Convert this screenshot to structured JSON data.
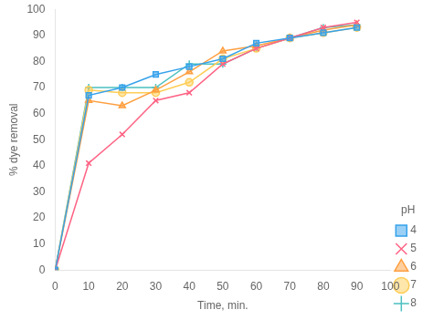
{
  "chart_data": {
    "type": "line",
    "xlabel": "Time, min.",
    "ylabel": "% dye removal",
    "x": [
      0,
      10,
      20,
      30,
      40,
      50,
      60,
      70,
      80,
      90
    ],
    "xlim": [
      0,
      100
    ],
    "ylim": [
      0,
      100
    ],
    "xticks": [
      0,
      10,
      20,
      30,
      40,
      50,
      60,
      70,
      80,
      90,
      100
    ],
    "yticks": [
      0,
      10,
      20,
      30,
      40,
      50,
      60,
      70,
      80,
      90,
      100
    ],
    "grid": false,
    "legend": "lower right",
    "legend_title": "pH",
    "series": [
      {
        "name": "4",
        "marker": "square",
        "values": [
          0,
          67,
          70,
          75,
          78,
          81,
          87,
          89,
          91,
          93
        ]
      },
      {
        "name": "5",
        "marker": "x",
        "values": [
          0,
          41,
          52,
          65,
          68,
          79,
          85,
          89,
          93,
          95
        ]
      },
      {
        "name": "6",
        "marker": "triangle",
        "values": [
          0,
          65,
          63,
          69,
          76,
          84,
          86,
          89,
          92,
          94
        ]
      },
      {
        "name": "7",
        "marker": "circle",
        "values": [
          0,
          69,
          68,
          68,
          72,
          81,
          85,
          89,
          91,
          93
        ]
      },
      {
        "name": "8",
        "marker": "plus",
        "values": [
          0,
          70,
          70,
          70,
          79,
          79,
          85,
          89,
          93,
          94
        ]
      }
    ]
  }
}
